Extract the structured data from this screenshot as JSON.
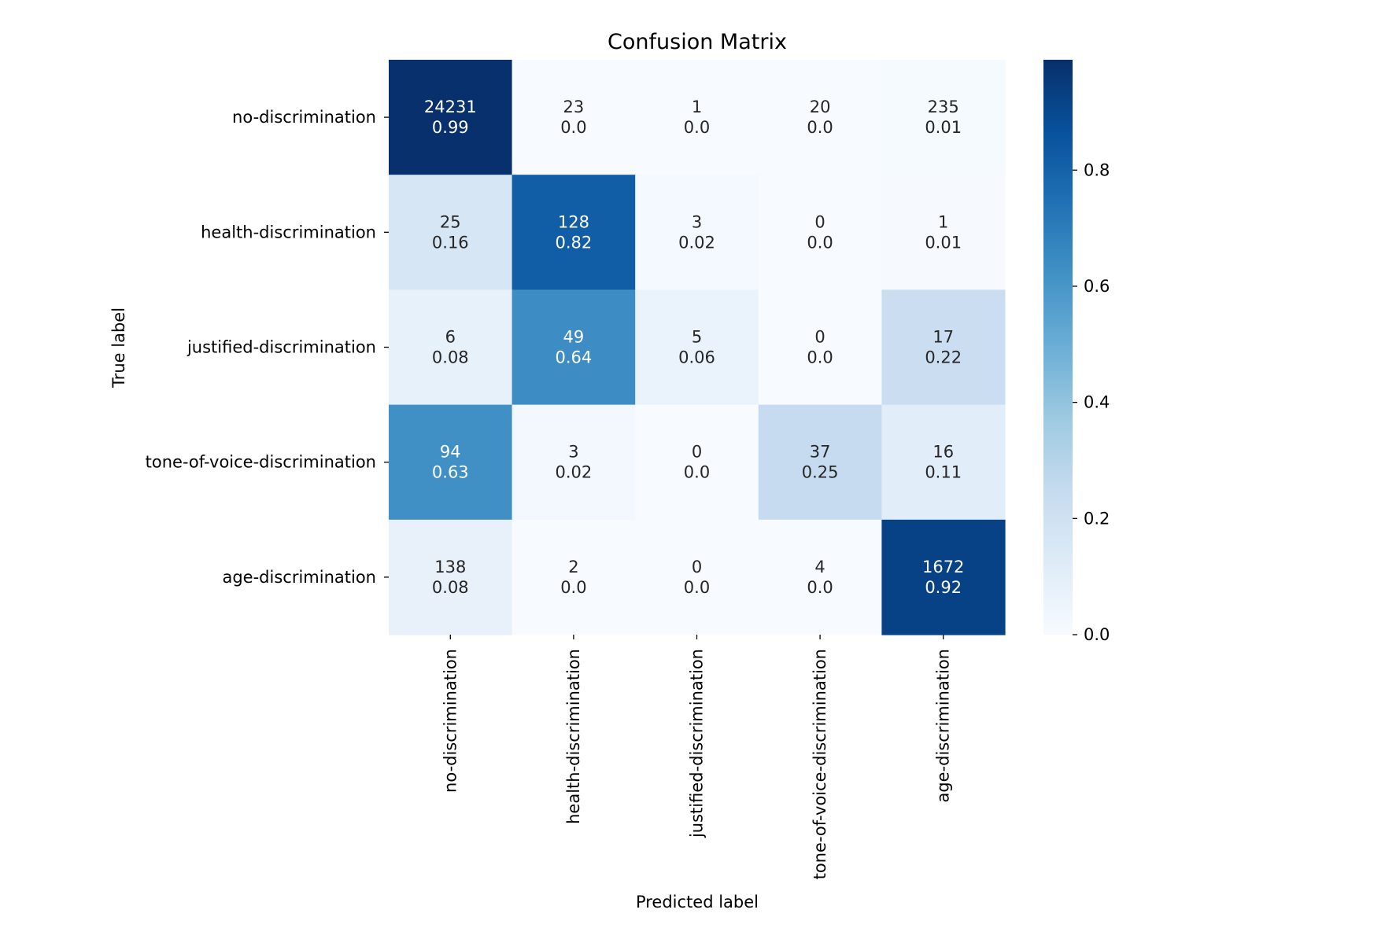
{
  "chart_data": {
    "type": "heatmap",
    "title": "Confusion Matrix",
    "xlabel": "Predicted label",
    "ylabel": "True label",
    "x_categories": [
      "no-discrimination",
      "health-discrimination",
      "justified-discrimination",
      "tone-of-voice-discrimination",
      "age-discrimination"
    ],
    "y_categories": [
      "no-discrimination",
      "health-discrimination",
      "justified-discrimination",
      "tone-of-voice-discrimination",
      "age-discrimination"
    ],
    "counts": [
      [
        24231,
        23,
        1,
        20,
        235
      ],
      [
        25,
        128,
        3,
        0,
        1
      ],
      [
        6,
        49,
        5,
        0,
        17
      ],
      [
        94,
        3,
        0,
        37,
        16
      ],
      [
        138,
        2,
        0,
        4,
        1672
      ]
    ],
    "normalized_labels": [
      [
        "0.99",
        "0.0",
        "0.0",
        "0.0",
        "0.01"
      ],
      [
        "0.16",
        "0.82",
        "0.02",
        "0.0",
        "0.01"
      ],
      [
        "0.08",
        "0.64",
        "0.06",
        "0.0",
        "0.22"
      ],
      [
        "0.63",
        "0.02",
        "0.0",
        "0.25",
        "0.11"
      ],
      [
        "0.08",
        "0.0",
        "0.0",
        "0.0",
        "0.92"
      ]
    ],
    "colorbar": {
      "colormap": "Blues",
      "range": [
        0.0,
        0.99
      ],
      "ticks": [
        0.0,
        0.2,
        0.4,
        0.6,
        0.8
      ],
      "tick_labels": [
        "0.0",
        "0.2",
        "0.4",
        "0.6",
        "0.8"
      ]
    }
  }
}
